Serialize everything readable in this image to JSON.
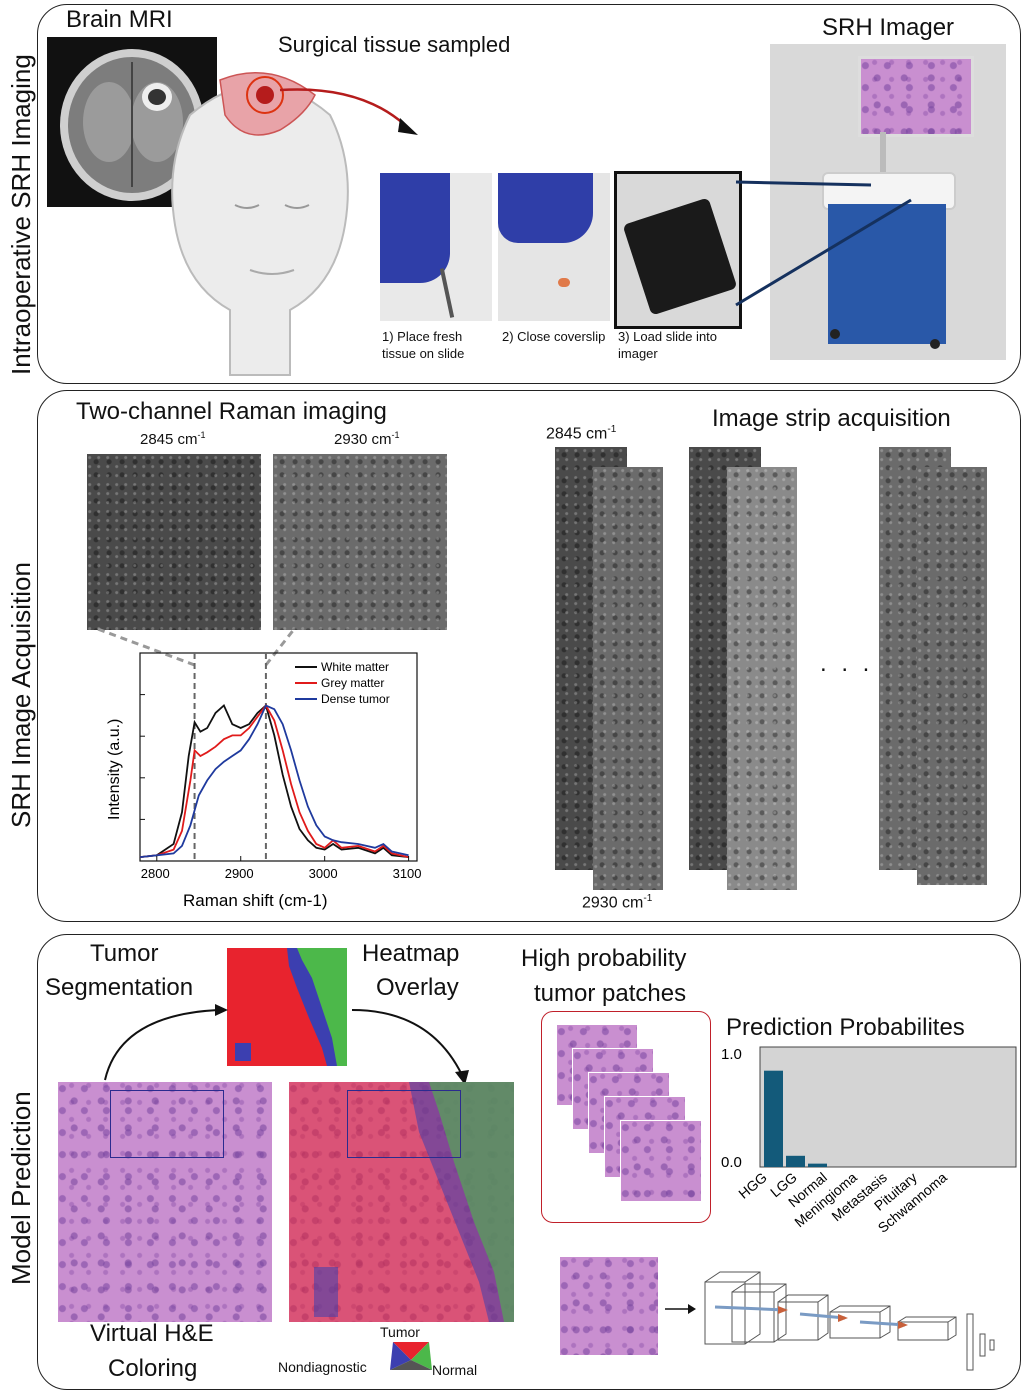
{
  "panel1": {
    "side_label": "Intraoperative SRH Imaging",
    "brain_mri_label": "Brain MRI",
    "tissue_label": "Surgical tissue sampled",
    "imager_label": "SRH Imager",
    "steps": [
      "1) Place fresh tissue on slide",
      "2) Close coverslip",
      "3) Load slide into imager"
    ]
  },
  "panel2": {
    "side_label": "SRH Image Acquisition",
    "raman_title": "Two-channel Raman imaging",
    "ch1_label": "2845 cm",
    "ch2_label": "2930 cm",
    "superscript": "-1",
    "strip_title": "Image strip acquisition",
    "strip_top_label": "2845 cm",
    "strip_bottom_label": "2930 cm",
    "ellipsis": ". . ."
  },
  "chart_data": {
    "type": "line",
    "xlabel": "Raman shift (cm-1)",
    "ylabel": "Intensity (a.u.)",
    "xlim": [
      2780,
      3110
    ],
    "xticks": [
      2800,
      2900,
      3000,
      3100
    ],
    "markers": [
      2845,
      2930
    ],
    "series": [
      {
        "name": "White matter",
        "color": "#111111",
        "x": [
          2780,
          2800,
          2820,
          2830,
          2838,
          2845,
          2852,
          2860,
          2870,
          2880,
          2890,
          2900,
          2910,
          2920,
          2930,
          2940,
          2950,
          2960,
          2970,
          2980,
          2990,
          3000,
          3010,
          3020,
          3040,
          3060,
          3070,
          3080,
          3100
        ],
        "y": [
          0.01,
          0.02,
          0.08,
          0.25,
          0.55,
          0.73,
          0.68,
          0.7,
          0.78,
          0.82,
          0.72,
          0.7,
          0.72,
          0.78,
          0.82,
          0.66,
          0.45,
          0.28,
          0.16,
          0.1,
          0.06,
          0.05,
          0.08,
          0.05,
          0.06,
          0.03,
          0.06,
          0.02,
          0.01
        ]
      },
      {
        "name": "Grey matter",
        "color": "#e01b1b",
        "x": [
          2780,
          2800,
          2820,
          2830,
          2840,
          2845,
          2852,
          2860,
          2870,
          2880,
          2890,
          2900,
          2910,
          2920,
          2930,
          2940,
          2950,
          2960,
          2970,
          2980,
          2990,
          3000,
          3010,
          3020,
          3040,
          3060,
          3070,
          3080,
          3100
        ],
        "y": [
          0.01,
          0.02,
          0.05,
          0.15,
          0.42,
          0.58,
          0.55,
          0.57,
          0.6,
          0.64,
          0.66,
          0.66,
          0.7,
          0.76,
          0.82,
          0.74,
          0.58,
          0.4,
          0.25,
          0.15,
          0.08,
          0.06,
          0.1,
          0.06,
          0.07,
          0.04,
          0.07,
          0.03,
          0.01
        ]
      },
      {
        "name": "Dense tumor",
        "color": "#1f3a9e",
        "x": [
          2780,
          2800,
          2820,
          2830,
          2840,
          2850,
          2860,
          2870,
          2880,
          2890,
          2900,
          2910,
          2920,
          2930,
          2940,
          2950,
          2960,
          2970,
          2980,
          2990,
          3000,
          3010,
          3020,
          3040,
          3060,
          3070,
          3080,
          3100
        ],
        "y": [
          0.01,
          0.02,
          0.03,
          0.07,
          0.18,
          0.34,
          0.42,
          0.48,
          0.52,
          0.55,
          0.58,
          0.64,
          0.72,
          0.82,
          0.8,
          0.72,
          0.58,
          0.42,
          0.28,
          0.18,
          0.12,
          0.1,
          0.09,
          0.08,
          0.06,
          0.08,
          0.04,
          0.02
        ]
      }
    ]
  },
  "panel3": {
    "side_label": "Model Prediction",
    "seg_label_1": "Tumor",
    "seg_label_2": "Segmentation",
    "heat_label_1": "Heatmap",
    "heat_label_2": "Overlay",
    "he_label_1": "Virtual H&E",
    "he_label_2": "Coloring",
    "patches_label_1": "High probability",
    "patches_label_2": "tumor patches",
    "legend_tumor": "Tumor",
    "legend_nondiag": "Nondiagnostic",
    "legend_normal": "Normal",
    "colors": {
      "tumor": "#e8232e",
      "normal": "#4cb84a",
      "nondiagnostic": "#3c3fb0",
      "bar": "#135a7a"
    }
  },
  "prediction": {
    "title": "Prediction Probabilites",
    "ytick_top": "1.0",
    "ytick_bottom": "0.0",
    "categories": [
      "HGG",
      "LGG",
      "Normal",
      "Meningioma",
      "Metastasis",
      "Pituitary",
      "Schwannoma"
    ],
    "values": [
      0.86,
      0.1,
      0.03,
      0.0,
      0.0,
      0.0,
      0.0
    ]
  }
}
